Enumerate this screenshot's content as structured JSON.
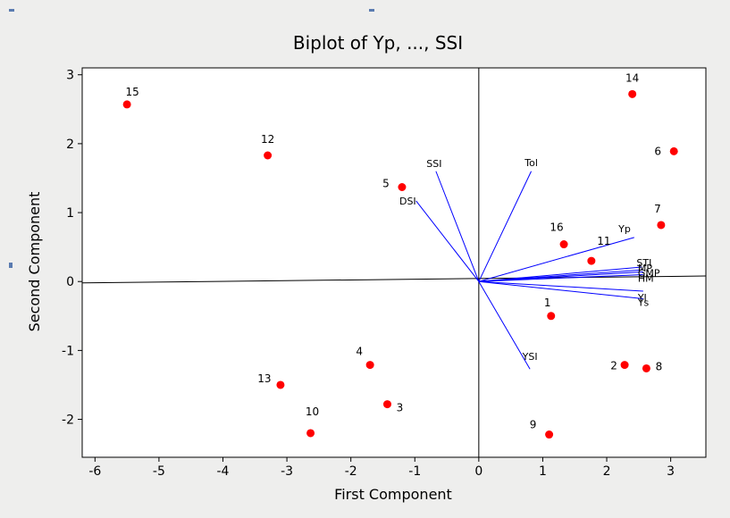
{
  "chart_data": {
    "type": "scatter",
    "title": "Biplot of Yp, ..., SSI",
    "xlabel": "First Component",
    "ylabel": "Second Component",
    "xlim": [
      -6.2,
      3.55
    ],
    "ylim": [
      -2.55,
      3.1
    ],
    "xticks": [
      -6,
      -5,
      -4,
      -3,
      -2,
      -1,
      0,
      1,
      2,
      3
    ],
    "yticks": [
      -2,
      -1,
      0,
      1,
      2,
      3
    ],
    "point_color": "#ff0000",
    "vector_color": "#0000ff",
    "points": [
      {
        "label": "1",
        "x": 1.13,
        "y": -0.5
      },
      {
        "label": "2",
        "x": 2.28,
        "y": -1.21
      },
      {
        "label": "3",
        "x": -1.43,
        "y": -1.78
      },
      {
        "label": "4",
        "x": -1.7,
        "y": -1.21
      },
      {
        "label": "5",
        "x": -1.2,
        "y": 1.37
      },
      {
        "label": "6",
        "x": 3.05,
        "y": 1.89
      },
      {
        "label": "7",
        "x": 2.85,
        "y": 0.82
      },
      {
        "label": "8",
        "x": 2.62,
        "y": -1.26
      },
      {
        "label": "9",
        "x": 1.1,
        "y": -2.22
      },
      {
        "label": "10",
        "x": -2.63,
        "y": -2.2
      },
      {
        "label": "11",
        "x": 1.76,
        "y": 0.3
      },
      {
        "label": "12",
        "x": -3.3,
        "y": 1.83
      },
      {
        "label": "13",
        "x": -3.1,
        "y": -1.5
      },
      {
        "label": "14",
        "x": 2.4,
        "y": 2.72
      },
      {
        "label": "15",
        "x": -5.5,
        "y": 2.57
      },
      {
        "label": "16",
        "x": 1.33,
        "y": 0.54
      }
    ],
    "vectors": [
      {
        "label": "SSI",
        "x": -0.67,
        "y": 1.6
      },
      {
        "label": "Tol",
        "x": 0.82,
        "y": 1.6
      },
      {
        "label": "DSI",
        "x": -0.98,
        "y": 1.17
      },
      {
        "label": "Yp",
        "x": 2.43,
        "y": 0.64
      },
      {
        "label": "STI",
        "x": 2.55,
        "y": 0.21
      },
      {
        "label": "MP",
        "x": 2.57,
        "y": 0.17
      },
      {
        "label": "GMP",
        "x": 2.57,
        "y": 0.14
      },
      {
        "label": "HM",
        "x": 2.57,
        "y": 0.1
      },
      {
        "label": "YI",
        "x": 2.57,
        "y": -0.14
      },
      {
        "label": "Ys",
        "x": 2.57,
        "y": -0.25
      },
      {
        "label": "YSI",
        "x": 0.8,
        "y": -1.27
      }
    ]
  }
}
